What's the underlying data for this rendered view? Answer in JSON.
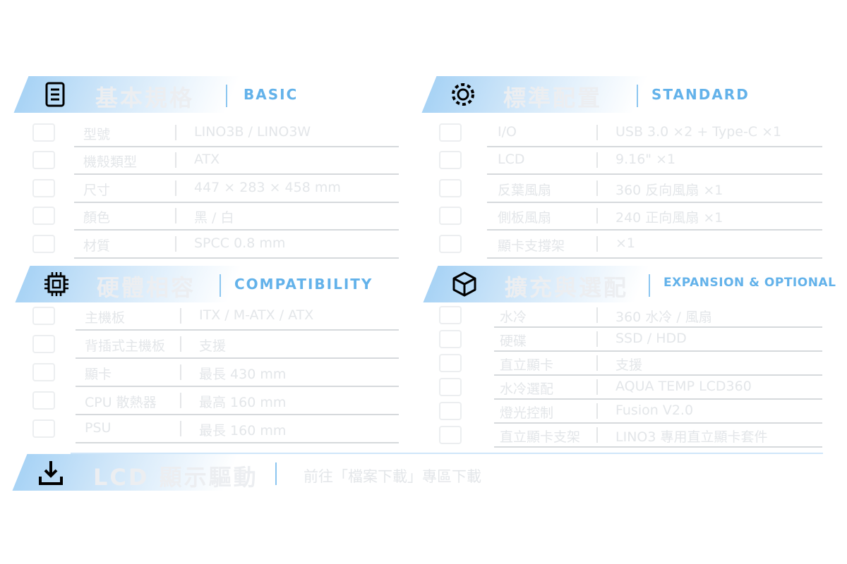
{
  "sections": [
    {
      "title": "基本規格",
      "subtitle": "BASIC",
      "rows": [
        {
          "label": "型號",
          "value": "LINO3B / LINO3W"
        },
        {
          "label": "機殼類型",
          "value": "ATX"
        },
        {
          "label": "尺寸",
          "value": "447 × 283 × 458 mm"
        },
        {
          "label": "顏色",
          "value": "黑 / 白"
        },
        {
          "label": "材質",
          "value": "SPCC 0.8 mm"
        }
      ]
    },
    {
      "title": "標準配置",
      "subtitle": "STANDARD",
      "rows": [
        {
          "label": "I/O",
          "value": "USB 3.0 ×2 + Type-C ×1"
        },
        {
          "label": "LCD",
          "value": "9.16\" ×1"
        },
        {
          "label": "反葉風扇",
          "value": "360 反向風扇 ×1"
        },
        {
          "label": "側板風扇",
          "value": "240 正向風扇 ×1"
        },
        {
          "label": "顯卡支撐架",
          "value": "×1"
        }
      ]
    },
    {
      "title": "硬體相容",
      "subtitle": "COMPATIBILITY",
      "rows": [
        {
          "label": "主機板",
          "value": "ITX / M-ATX / ATX"
        },
        {
          "label": "背插式主機板",
          "value": "支援"
        },
        {
          "label": "顯卡",
          "value": "最長 430 mm"
        },
        {
          "label": "CPU 散熱器",
          "value": "最高 160 mm"
        },
        {
          "label": "PSU",
          "value": "最長 160 mm"
        }
      ]
    },
    {
      "title": "擴充與選配",
      "subtitle": "EXPANSION & OPTIONAL",
      "rows": [
        {
          "label": "水冷",
          "value": "360 水冷 / 風扇"
        },
        {
          "label": "硬碟",
          "value": "SSD / HDD"
        },
        {
          "label": "直立顯卡",
          "value": "支援"
        },
        {
          "label": "水冷選配",
          "value": "AQUA TEMP LCD360"
        },
        {
          "label": "燈光控制",
          "value": "Fusion V2.0"
        },
        {
          "label": "直立顯卡支架",
          "value": "LINO3 專用直立顯卡套件"
        }
      ]
    }
  ],
  "footer": {
    "title": "LCD 顯示驅動",
    "note": "前往「檔案下載」專區下載"
  }
}
